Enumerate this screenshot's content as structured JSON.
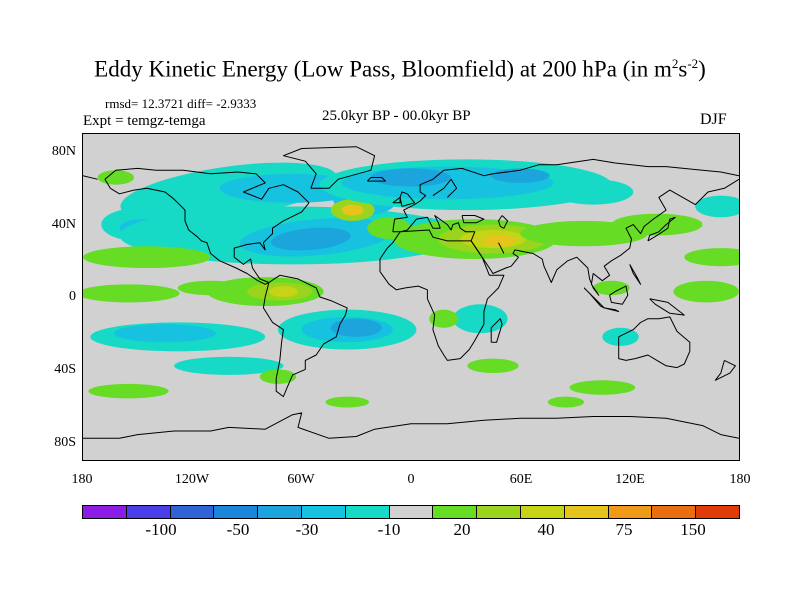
{
  "title": {
    "main": "Eddy Kinetic Energy (Low Pass, Bloomfield) at 200 hPa (in m",
    "sup1": "2",
    "mid": "s",
    "sup2": "-2",
    "close": ")"
  },
  "stats": "rmsd= 12.3721 diff= -2.9333",
  "experiment": "Expt = temgz-temga",
  "period": "25.0kyr BP - 00.0kyr BP",
  "season": "DJF",
  "axes": {
    "lat_ticks": [
      "80N",
      "40N",
      "0",
      "40S",
      "80S"
    ],
    "lon_ticks": [
      "180",
      "120W",
      "60W",
      "0",
      "60E",
      "120E",
      "180"
    ]
  },
  "colorbar": {
    "colors": [
      "#8a1ce6",
      "#4a3ee8",
      "#2f63d6",
      "#1b84db",
      "#1ca4dc",
      "#17c2e0",
      "#16dac6",
      "#d1d1d1",
      "#66dc25",
      "#9ad41d",
      "#c6d417",
      "#e6c41c",
      "#ee9a16",
      "#ea6e10",
      "#e03a08"
    ],
    "labels": [
      "-100",
      "-50",
      "-30",
      "-10",
      "20",
      "40",
      "75",
      "150"
    ]
  },
  "field_colors": {
    "background": "#d1d1d1",
    "neg_light": "#16dac6",
    "neg_mid": "#17c2e0",
    "neg_strong": "#1ca4dc",
    "neg_deep": "#1b84db",
    "pos_light": "#66dc25",
    "pos_mid": "#9ad41d",
    "pos_strong": "#c6d417",
    "pos_peak": "#e6c41c"
  }
}
